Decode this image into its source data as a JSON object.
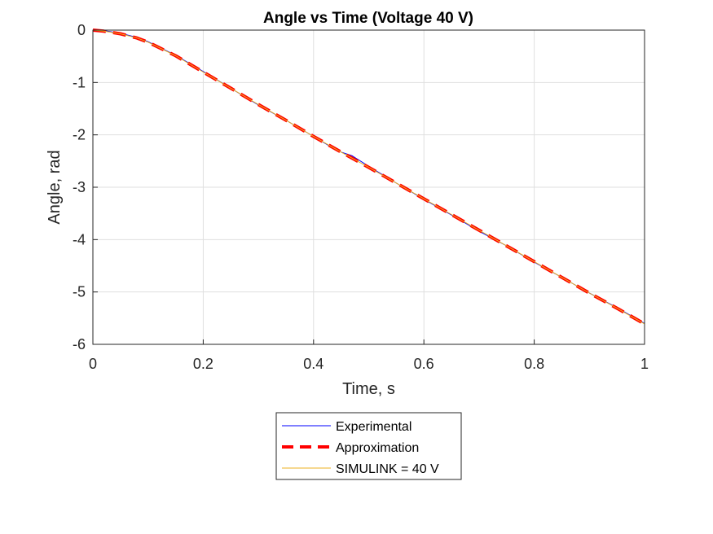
{
  "chart_data": {
    "type": "line",
    "title": "Angle vs Time (Voltage 40 V)",
    "xlabel": "Time, s",
    "ylabel": "Angle, rad",
    "xlim": [
      0,
      1
    ],
    "ylim": [
      -6,
      0
    ],
    "xticks": [
      0,
      0.2,
      0.4,
      0.6,
      0.8,
      1
    ],
    "xtick_labels": [
      "0",
      "0.2",
      "0.4",
      "0.6",
      "0.8",
      "1"
    ],
    "yticks": [
      0,
      -1,
      -2,
      -3,
      -4,
      -5,
      -6
    ],
    "ytick_labels": [
      "0",
      "-1",
      "-2",
      "-3",
      "-4",
      "-5",
      "-6"
    ],
    "grid": true,
    "legend_position": "bottom-outside",
    "series": [
      {
        "name": "Experimental",
        "color": "#0000ff",
        "style": "solid",
        "x": [
          0,
          0.02,
          0.05,
          0.08,
          0.1,
          0.15,
          0.2,
          0.25,
          0.3,
          0.35,
          0.4,
          0.43,
          0.45,
          0.47,
          0.5,
          0.55,
          0.6,
          0.65,
          0.7,
          0.75,
          0.8,
          0.85,
          0.9,
          0.95,
          1.0
        ],
        "y": [
          0,
          -0.01,
          -0.06,
          -0.14,
          -0.22,
          -0.48,
          -0.79,
          -1.11,
          -1.43,
          -1.72,
          -2.03,
          -2.22,
          -2.33,
          -2.4,
          -2.6,
          -2.92,
          -3.23,
          -3.53,
          -3.84,
          -4.12,
          -4.43,
          -4.72,
          -5.02,
          -5.3,
          -5.6
        ]
      },
      {
        "name": "Approximation",
        "color": "#ff0000",
        "style": "dashed",
        "x": [
          0,
          0.02,
          0.05,
          0.08,
          0.1,
          0.15,
          0.2,
          0.25,
          0.3,
          0.35,
          0.4,
          0.45,
          0.5,
          0.55,
          0.6,
          0.65,
          0.7,
          0.75,
          0.8,
          0.85,
          0.9,
          0.95,
          1.0
        ],
        "y": [
          0,
          -0.02,
          -0.07,
          -0.15,
          -0.23,
          -0.49,
          -0.8,
          -1.11,
          -1.42,
          -1.72,
          -2.03,
          -2.33,
          -2.62,
          -2.92,
          -3.22,
          -3.52,
          -3.82,
          -4.12,
          -4.42,
          -4.72,
          -5.02,
          -5.31,
          -5.61
        ]
      },
      {
        "name": "SIMULINK = 40 V",
        "color": "#edb120",
        "style": "solid",
        "x": [
          0,
          0.02,
          0.05,
          0.08,
          0.1,
          0.15,
          0.2,
          0.25,
          0.3,
          0.35,
          0.4,
          0.45,
          0.5,
          0.55,
          0.6,
          0.65,
          0.7,
          0.75,
          0.8,
          0.85,
          0.9,
          0.95,
          1.0
        ],
        "y": [
          0,
          -0.02,
          -0.07,
          -0.15,
          -0.23,
          -0.49,
          -0.8,
          -1.11,
          -1.42,
          -1.72,
          -2.03,
          -2.33,
          -2.62,
          -2.92,
          -3.22,
          -3.52,
          -3.82,
          -4.12,
          -4.42,
          -4.72,
          -5.02,
          -5.31,
          -5.61
        ]
      }
    ]
  }
}
